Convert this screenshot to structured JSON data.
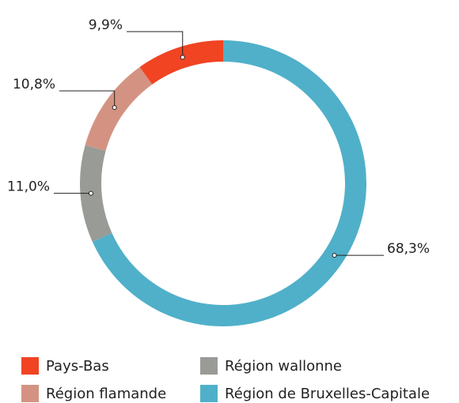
{
  "chart_data": {
    "type": "pie",
    "categories": [
      "Pays-Bas",
      "Région flamande",
      "Région wallonne",
      "Région de Bruxelles-Capitale"
    ],
    "values": [
      9.9,
      10.8,
      11.0,
      68.3
    ],
    "value_labels": [
      "9,9%",
      "10,8%",
      "11,0%",
      "68,3%"
    ],
    "colors": [
      "#f04423",
      "#d49382",
      "#999b96",
      "#50b0c9"
    ],
    "legend": "bottom"
  }
}
